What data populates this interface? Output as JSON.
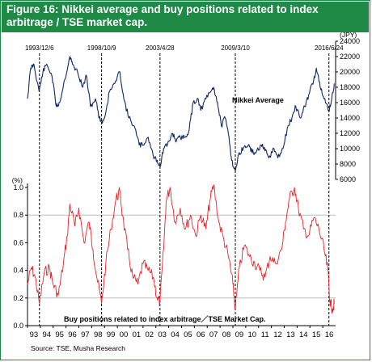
{
  "title": "Figure 16: Nikkei average and buy positions related to index arbitrage / TSE market cap.",
  "source": "Source: TSE, Musha Research",
  "colors": {
    "header_bg": "#1e8a45",
    "nikkei_line": "#0d2a66",
    "ratio_line": "#e8232a",
    "gridline": "#bdbdbd",
    "event_line": "#000000"
  },
  "chart_data": [
    {
      "type": "line",
      "title": "",
      "series": [
        {
          "name": "Nikkei Average"
        }
      ],
      "series_label": "Nikkei Average",
      "ylabel": "(JPY)",
      "ylim": [
        6000,
        24000
      ],
      "yticks": [
        6000,
        8000,
        10000,
        12000,
        14000,
        16000,
        18000,
        20000,
        22000,
        24000
      ],
      "axis_side": "right",
      "x_start": 1993.0,
      "x_end": 2017.0,
      "x": [
        1993.0,
        1993.25,
        1993.5,
        1993.9,
        1994.2,
        1994.5,
        1994.9,
        1995.25,
        1995.5,
        1995.9,
        1996.3,
        1996.5,
        1996.9,
        1997.3,
        1997.6,
        1997.9,
        1998.3,
        1998.6,
        1998.8,
        1999.0,
        1999.4,
        1999.8,
        2000.2,
        2000.5,
        2000.9,
        2001.3,
        2001.7,
        2002.0,
        2002.4,
        2002.8,
        2003.1,
        2003.33,
        2003.6,
        2003.9,
        2004.3,
        2004.6,
        2004.9,
        2005.3,
        2005.6,
        2005.9,
        2006.3,
        2006.5,
        2006.9,
        2007.3,
        2007.5,
        2007.8,
        2008.1,
        2008.4,
        2008.7,
        2008.9,
        2009.19,
        2009.5,
        2009.8,
        2010.2,
        2010.5,
        2010.8,
        2011.2,
        2011.5,
        2011.8,
        2012.2,
        2012.5,
        2012.9,
        2013.3,
        2013.6,
        2013.9,
        2014.3,
        2014.6,
        2014.9,
        2015.3,
        2015.5,
        2015.8,
        2016.1,
        2016.48,
        2016.7,
        2016.9
      ],
      "values": [
        16500,
        20500,
        21000,
        17500,
        20000,
        21000,
        19500,
        15500,
        16000,
        19000,
        22000,
        21000,
        20000,
        18000,
        19500,
        15500,
        16500,
        14000,
        13500,
        14000,
        17500,
        18500,
        20000,
        16500,
        14000,
        13000,
        10500,
        10500,
        11500,
        9000,
        8500,
        7600,
        10000,
        10500,
        12000,
        11000,
        11500,
        11500,
        12500,
        16000,
        16500,
        15000,
        16500,
        17500,
        18000,
        16000,
        13000,
        14000,
        11500,
        8500,
        7100,
        9500,
        10000,
        10500,
        9500,
        9500,
        10500,
        9700,
        8800,
        10000,
        8800,
        10000,
        13000,
        14000,
        15500,
        14000,
        15500,
        17000,
        19000,
        20500,
        18000,
        16500,
        15000,
        16500,
        18500
      ],
      "annotations": [
        "1993/12/6",
        "1998/10/9",
        "2003/4/28",
        "2009/3/10",
        "2016/6/24"
      ],
      "annotation_x": [
        1993.93,
        1998.77,
        2003.32,
        2009.19,
        2016.48
      ]
    },
    {
      "type": "line",
      "title": "",
      "series": [
        {
          "name": "Buy positions related to index arbitrage／TSE Market Cap."
        }
      ],
      "series_label": "Buy positions related to index arbitrage／TSE Market Cap.",
      "ylabel": "(%)",
      "ylim": [
        0.0,
        1.0
      ],
      "yticks": [
        0.0,
        0.2,
        0.4,
        0.6,
        0.8,
        1.0
      ],
      "ytick_labels": [
        "0.0",
        "0.2",
        "0.4",
        "0.6",
        "0.8",
        "1.0"
      ],
      "gridlines_at": [
        0.2,
        0.8
      ],
      "axis_side": "left",
      "x_start": 1993.0,
      "x_end": 2017.0,
      "xticks": [
        "93",
        "94",
        "95",
        "96",
        "97",
        "98",
        "99",
        "00",
        "01",
        "02",
        "03",
        "04",
        "05",
        "06",
        "07",
        "08",
        "09",
        "10",
        "11",
        "12",
        "13",
        "14",
        "15",
        "16"
      ],
      "x": [
        1993.0,
        1993.3,
        1993.6,
        1993.93,
        1994.3,
        1994.7,
        1995.0,
        1995.4,
        1995.8,
        1996.1,
        1996.3,
        1996.7,
        1997.0,
        1997.4,
        1997.8,
        1998.1,
        1998.4,
        1998.77,
        1999.1,
        1999.5,
        1999.9,
        2000.2,
        2000.4,
        2000.8,
        2001.2,
        2001.6,
        2002.0,
        2002.4,
        2002.8,
        2003.1,
        2003.32,
        2003.6,
        2003.8,
        2004.1,
        2004.5,
        2004.9,
        2005.3,
        2005.7,
        2006.1,
        2006.5,
        2006.9,
        2007.2,
        2007.5,
        2007.9,
        2008.3,
        2008.7,
        2009.0,
        2009.19,
        2009.5,
        2009.9,
        2010.3,
        2010.7,
        2011.1,
        2011.5,
        2011.9,
        2012.3,
        2012.8,
        2013.1,
        2013.4,
        2013.8,
        2014.1,
        2014.5,
        2014.9,
        2015.3,
        2015.7,
        2016.1,
        2016.4,
        2016.55,
        2016.75,
        2016.9
      ],
      "values": [
        0.3,
        0.42,
        0.35,
        0.16,
        0.38,
        0.42,
        0.3,
        0.22,
        0.45,
        0.65,
        0.88,
        0.72,
        0.85,
        0.6,
        0.75,
        0.55,
        0.35,
        0.16,
        0.45,
        0.7,
        0.92,
        0.97,
        0.8,
        0.55,
        0.35,
        0.3,
        0.45,
        0.4,
        0.35,
        0.2,
        0.17,
        0.55,
        0.9,
        1.0,
        0.75,
        0.85,
        0.7,
        0.8,
        0.65,
        0.8,
        0.7,
        0.9,
        1.02,
        0.75,
        0.62,
        0.48,
        0.3,
        0.12,
        0.42,
        0.58,
        0.5,
        0.45,
        0.4,
        0.35,
        0.5,
        0.45,
        0.55,
        0.75,
        0.92,
        1.0,
        0.85,
        0.7,
        0.65,
        0.78,
        0.7,
        0.55,
        0.4,
        0.18,
        0.12,
        0.16
      ],
      "annotations": [],
      "annotation_x": []
    }
  ]
}
